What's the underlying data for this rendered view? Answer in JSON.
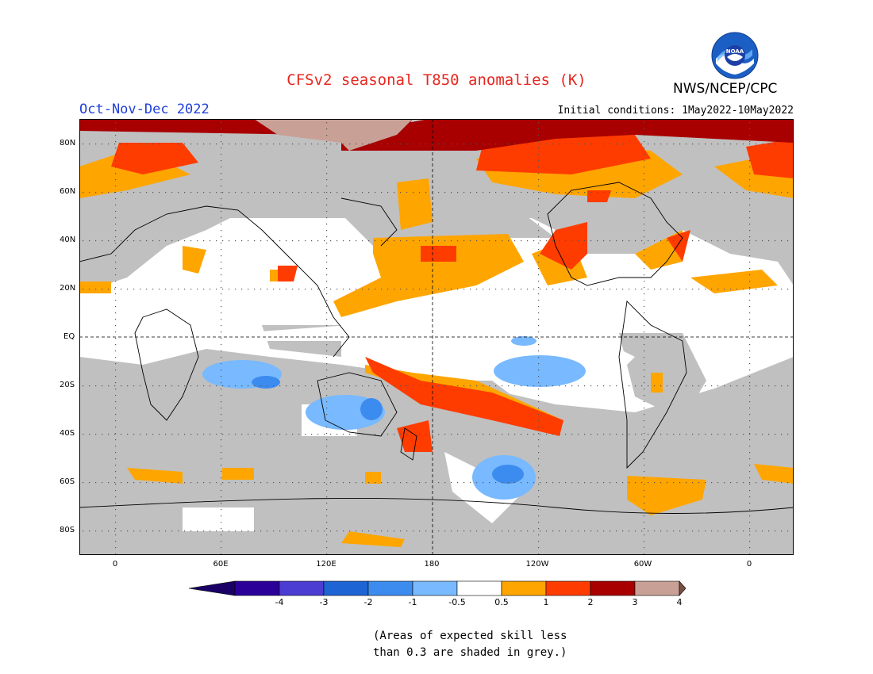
{
  "title": "CFSv2 seasonal T850 anomalies (K)",
  "period": "Oct-Nov-Dec 2022",
  "initial_conditions": "Initial conditions: 1May2022-10May2022",
  "agency": "NWS/NCEP/CPC",
  "logo_text": "NOAA",
  "map": {
    "lat_labels": [
      "80N",
      "60N",
      "40N",
      "20N",
      "EQ",
      "20S",
      "40S",
      "60S",
      "80S"
    ],
    "lon_labels": [
      "0",
      "60E",
      "120E",
      "180",
      "120W",
      "60W",
      "0"
    ],
    "colors": {
      "skill_grey": "#c0c0c0",
      "ocean_white": "#ffffff",
      "c_0_5_1": "#ffa500",
      "c_1_2": "#ff3c00",
      "c_2_3": "#a80000",
      "c_3_4": "#c8a096",
      "c_neg_0_5_1": "#78b9ff",
      "c_neg_1_2": "#3c8cf0"
    }
  },
  "colorbar": {
    "labels": [
      "-4",
      "-3",
      "-2",
      "-1",
      "-0.5",
      "0.5",
      "1",
      "2",
      "3",
      "4"
    ],
    "colors": [
      "#2a0099",
      "#4b3cd2",
      "#1f64d4",
      "#3c8cf0",
      "#78b9ff",
      "#ffffff",
      "#ffa500",
      "#ff3c00",
      "#a80000",
      "#c8a096"
    ],
    "end_low": "#1a0066",
    "end_high": "#7a5044"
  },
  "note": {
    "line1": "(Areas of expected skill less",
    "line2": "than 0.3 are shaded in grey.)"
  }
}
